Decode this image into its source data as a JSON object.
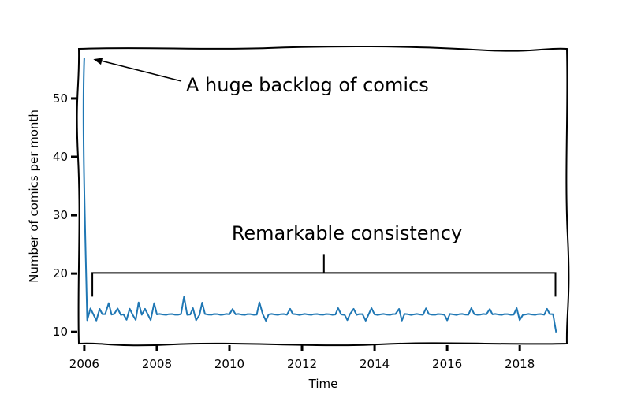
{
  "chart_data": {
    "type": "line",
    "title": "",
    "xlabel": "Time",
    "ylabel": "Number of comics per month",
    "xlim": [
      2005.85,
      2019.3
    ],
    "ylim": [
      8.0,
      58.5
    ],
    "x_ticks": [
      2006,
      2008,
      2010,
      2012,
      2014,
      2016,
      2018
    ],
    "x_tick_labels": [
      "2006",
      "2008",
      "2010",
      "2012",
      "2014",
      "2016",
      "2018"
    ],
    "y_ticks": [
      10,
      20,
      30,
      40,
      50
    ],
    "y_tick_labels": [
      "10",
      "20",
      "30",
      "40",
      "50"
    ],
    "grid": false,
    "legend": "none",
    "series": [
      {
        "color": "#1f77b4",
        "x": [
          2006.0,
          2006.08,
          2006.17,
          2006.25,
          2006.33,
          2006.42,
          2006.5,
          2006.58,
          2006.67,
          2006.75,
          2006.83,
          2006.92,
          2007.0,
          2007.08,
          2007.17,
          2007.25,
          2007.33,
          2007.42,
          2007.5,
          2007.58,
          2007.67,
          2007.75,
          2007.83,
          2007.92,
          2008.0,
          2008.08,
          2008.17,
          2008.25,
          2008.33,
          2008.42,
          2008.5,
          2008.58,
          2008.67,
          2008.75,
          2008.83,
          2008.92,
          2009.0,
          2009.08,
          2009.17,
          2009.25,
          2009.33,
          2009.42,
          2009.5,
          2009.58,
          2009.67,
          2009.75,
          2009.83,
          2009.92,
          2010.0,
          2010.08,
          2010.17,
          2010.25,
          2010.33,
          2010.42,
          2010.5,
          2010.58,
          2010.67,
          2010.75,
          2010.83,
          2010.92,
          2011.0,
          2011.08,
          2011.17,
          2011.25,
          2011.33,
          2011.42,
          2011.5,
          2011.58,
          2011.67,
          2011.75,
          2011.83,
          2011.92,
          2012.0,
          2012.08,
          2012.17,
          2012.25,
          2012.33,
          2012.42,
          2012.5,
          2012.58,
          2012.67,
          2012.75,
          2012.83,
          2012.92,
          2013.0,
          2013.08,
          2013.17,
          2013.25,
          2013.33,
          2013.42,
          2013.5,
          2013.58,
          2013.67,
          2013.75,
          2013.83,
          2013.92,
          2014.0,
          2014.08,
          2014.17,
          2014.25,
          2014.33,
          2014.42,
          2014.5,
          2014.58,
          2014.67,
          2014.75,
          2014.83,
          2014.92,
          2015.0,
          2015.08,
          2015.17,
          2015.25,
          2015.33,
          2015.42,
          2015.5,
          2015.58,
          2015.67,
          2015.75,
          2015.83,
          2015.92,
          2016.0,
          2016.08,
          2016.17,
          2016.25,
          2016.33,
          2016.42,
          2016.5,
          2016.58,
          2016.67,
          2016.75,
          2016.83,
          2016.92,
          2017.0,
          2017.08,
          2017.17,
          2017.25,
          2017.33,
          2017.42,
          2017.5,
          2017.58,
          2017.67,
          2017.75,
          2017.83,
          2017.92,
          2018.0,
          2018.08,
          2018.17,
          2018.25,
          2018.33,
          2018.42,
          2018.5,
          2018.58,
          2018.67,
          2018.75,
          2018.83,
          2018.92,
          2019.0
        ],
        "y": [
          57,
          12,
          14,
          13,
          12,
          14,
          13,
          13,
          15,
          13,
          13,
          14,
          13,
          13,
          12,
          14,
          13,
          12,
          15,
          13,
          14,
          13,
          12,
          15,
          13,
          13,
          13,
          13,
          13,
          13,
          13,
          13,
          13,
          16,
          13,
          13,
          14,
          12,
          13,
          15,
          13,
          13,
          13,
          13,
          13,
          13,
          13,
          13,
          13,
          14,
          13,
          13,
          13,
          13,
          13,
          13,
          13,
          13,
          15,
          13,
          12,
          13,
          13,
          13,
          13,
          13,
          13,
          13,
          14,
          13,
          13,
          13,
          13,
          13,
          13,
          13,
          13,
          13,
          13,
          13,
          13,
          13,
          13,
          13,
          14,
          13,
          13,
          12,
          13,
          14,
          13,
          13,
          13,
          12,
          13,
          14,
          13,
          13,
          13,
          13,
          13,
          13,
          13,
          13,
          14,
          12,
          13,
          13,
          13,
          13,
          13,
          13,
          13,
          14,
          13,
          13,
          13,
          13,
          13,
          13,
          12,
          13,
          13,
          13,
          13,
          13,
          13,
          13,
          14,
          13,
          13,
          13,
          13,
          13,
          14,
          13,
          13,
          13,
          13,
          13,
          13,
          13,
          13,
          14,
          12,
          13,
          13,
          13,
          13,
          13,
          13,
          13,
          13,
          14,
          13,
          13,
          10
        ]
      }
    ],
    "annotations": [
      {
        "text": "A huge backlog of comics",
        "arrow_target": [
          2006.25,
          57
        ]
      },
      {
        "text": "Remarkable consistency",
        "bracket_range": [
          2006.33,
          2018.92
        ],
        "bracket_y": 20.5
      }
    ]
  }
}
